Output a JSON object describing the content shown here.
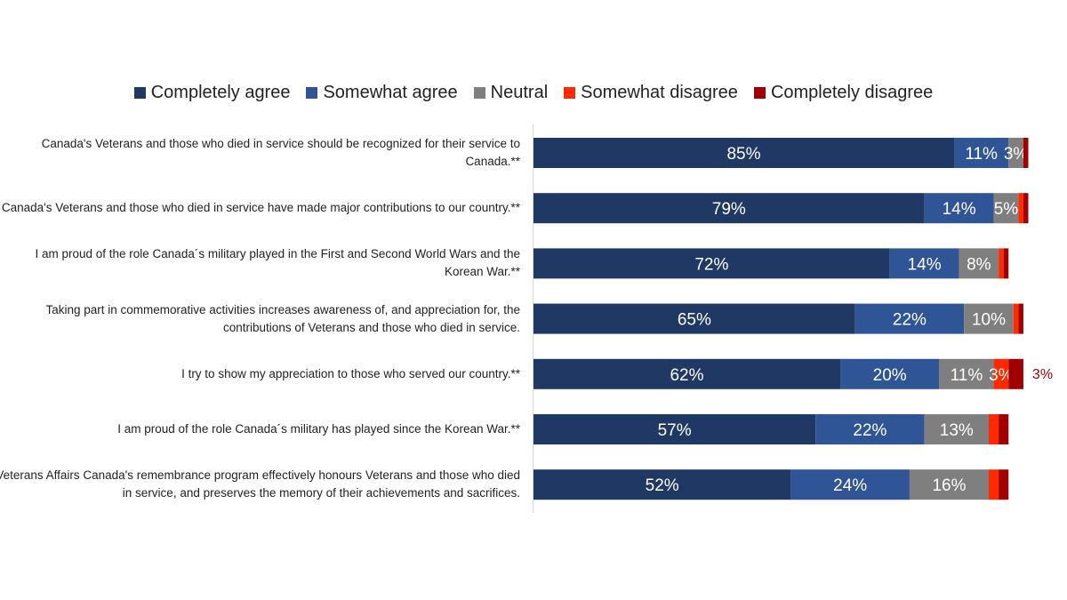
{
  "chart_data": {
    "type": "stacked-bar-horizontal",
    "legend_position": "top",
    "categories": [
      "Canada's Veterans and those who died in service should be recognized for their service to Canada.**",
      "Canada's Veterans and those who died in service have made major contributions to our country.**",
      "I am proud of the role Canada´s military played in the First and Second World Wars and the Korean War.**",
      "Taking part in commemorative activities increases awareness of, and appreciation for, the contributions of Veterans and those who died in service.",
      "I try to show my appreciation to those who served our country.**",
      "I am proud of the role Canada´s military has played since the Korean War.**",
      "Veterans Affairs Canada's remembrance program effectively honours Veterans and those who died in service, and preserves the memory of their achievements and sacrifices."
    ],
    "series": [
      {
        "name": "Completely agree",
        "color": "#203864",
        "values": [
          85,
          79,
          72,
          65,
          62,
          57,
          52
        ],
        "labels": [
          "85%",
          "79%",
          "72%",
          "65%",
          "62%",
          "57%",
          "52%"
        ]
      },
      {
        "name": "Somewhat agree",
        "color": "#2f5597",
        "values": [
          11,
          14,
          14,
          22,
          20,
          22,
          24
        ],
        "labels": [
          "11%",
          "14%",
          "14%",
          "22%",
          "20%",
          "22%",
          "24%"
        ]
      },
      {
        "name": "Neutral",
        "color": "#7f7f7f",
        "values": [
          3,
          5,
          8,
          10,
          11,
          13,
          16
        ],
        "labels": [
          "3%",
          "5%",
          "8%",
          "10%",
          "11%",
          "13%",
          "16%"
        ]
      },
      {
        "name": "Somewhat disagree",
        "color": "#ff2a00",
        "values": [
          0,
          1,
          1,
          1,
          3,
          2,
          2
        ],
        "labels": [
          "",
          "",
          "",
          "",
          "3%",
          "",
          ""
        ]
      },
      {
        "name": "Completely disagree",
        "color": "#a00000",
        "values": [
          1,
          1,
          1,
          1,
          3,
          2,
          2
        ],
        "labels": [
          "",
          "",
          "",
          "",
          "3%",
          "",
          ""
        ],
        "outside_labels": [
          "",
          "",
          "",
          "",
          "3%",
          "",
          ""
        ]
      }
    ],
    "xlim": [
      0,
      100
    ]
  }
}
